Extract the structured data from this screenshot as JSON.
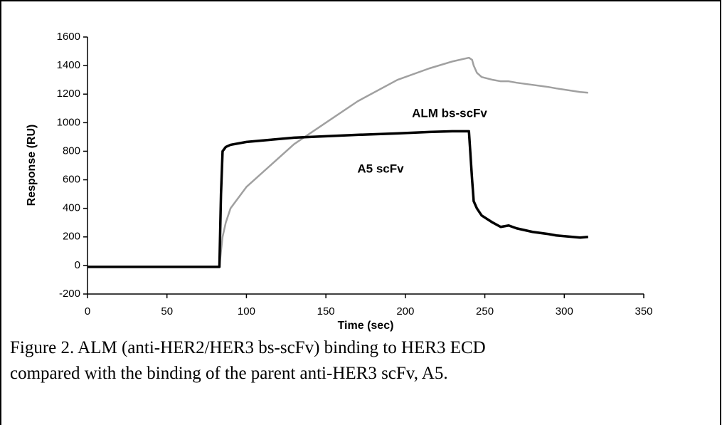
{
  "chart_data": {
    "type": "line",
    "x_label": "Time (sec)",
    "y_label": "Response (RU)",
    "caption": [
      "Figure 2.  ALM (anti-HER2/HER3 bs-scFv) binding to HER3 ECD",
      "compared with the binding of the parent anti-HER3 scFv, A5."
    ],
    "annotations": [
      "ALM bs-scFv",
      "A5 scFv"
    ],
    "x": [
      0,
      83,
      84,
      85,
      87,
      90,
      100,
      115,
      130,
      150,
      170,
      195,
      215,
      230,
      240,
      242,
      243,
      245,
      248,
      255,
      260,
      265,
      270,
      280,
      290,
      295,
      310,
      315
    ],
    "series": [
      {
        "name": "ALM bs-scFv",
        "color": "#a0a0a0",
        "values": [
          -10,
          -10,
          100,
          200,
          300,
          400,
          550,
          700,
          850,
          1000,
          1150,
          1300,
          1380,
          1430,
          1455,
          1440,
          1400,
          1350,
          1320,
          1300,
          1290,
          1290,
          1280,
          1265,
          1250,
          1240,
          1215,
          1210
        ]
      },
      {
        "name": "A5 scFv",
        "color": "#000000",
        "values": [
          -10,
          -10,
          500,
          800,
          830,
          845,
          865,
          880,
          895,
          905,
          915,
          925,
          935,
          940,
          940,
          600,
          450,
          400,
          350,
          300,
          270,
          280,
          260,
          235,
          220,
          210,
          195,
          200
        ]
      }
    ],
    "xlim": [
      0,
      350
    ],
    "xticks": [
      0,
      50,
      100,
      150,
      200,
      250,
      300,
      350
    ],
    "ylim": [
      -200,
      1600
    ],
    "yticks": [
      -200,
      0,
      200,
      400,
      600,
      800,
      1000,
      1200,
      1400,
      1600
    ]
  }
}
